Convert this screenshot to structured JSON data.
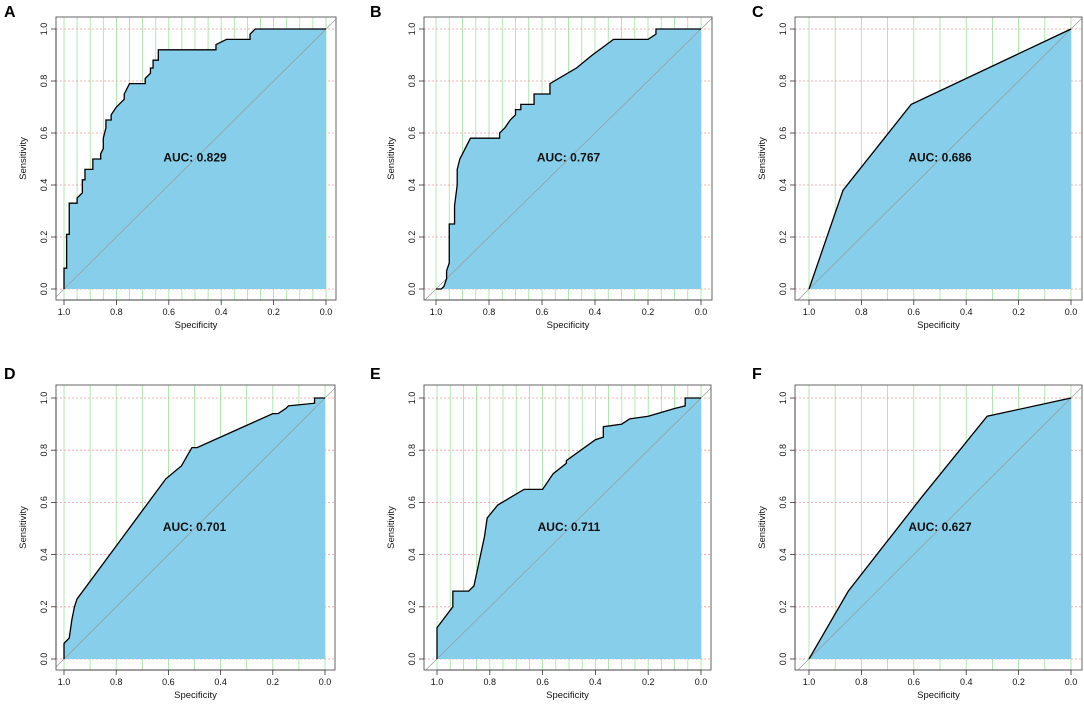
{
  "colors": {
    "area_fill": "#87ceea",
    "curve": "#000000",
    "grid_h": "#f19a9a",
    "grid_v": "#9ce39c",
    "diagonal": "#9a9a9a",
    "frame": "#555555"
  },
  "chart_data": [
    {
      "panel": "A",
      "type": "line",
      "title": "",
      "auc_label": "AUC: 0.829",
      "xlabel": "Specificity",
      "ylabel": "Sensitivity",
      "xlim": [
        1.0,
        0.0
      ],
      "ylim": [
        0.0,
        1.0
      ],
      "xticks": [
        "1.0",
        "0.8",
        "0.6",
        "0.4",
        "0.2",
        "0.0"
      ],
      "yticks": [
        "0.0",
        "0.2",
        "0.4",
        "0.6",
        "0.8",
        "1.0"
      ],
      "xgrid": [
        1.0,
        0.95,
        0.9,
        0.85,
        0.8,
        0.75,
        0.7,
        0.65,
        0.6,
        0.55,
        0.5,
        0.45,
        0.4,
        0.35,
        0.3,
        0.25,
        0.2,
        0.15,
        0.1,
        0.05,
        0.0
      ],
      "ygrid": [
        0.0,
        0.2,
        0.4,
        0.6,
        0.8,
        1.0
      ],
      "specificity": [
        1.0,
        1.0,
        0.99,
        0.99,
        0.98,
        0.98,
        0.95,
        0.95,
        0.93,
        0.93,
        0.92,
        0.92,
        0.89,
        0.89,
        0.86,
        0.86,
        0.85,
        0.85,
        0.84,
        0.84,
        0.82,
        0.82,
        0.8,
        0.79,
        0.77,
        0.77,
        0.75,
        0.69,
        0.69,
        0.67,
        0.67,
        0.66,
        0.66,
        0.64,
        0.64,
        0.42,
        0.42,
        0.38,
        0.29,
        0.29,
        0.27,
        0.0
      ],
      "sensitivity": [
        0.0,
        0.08,
        0.08,
        0.21,
        0.21,
        0.33,
        0.33,
        0.35,
        0.37,
        0.42,
        0.42,
        0.46,
        0.46,
        0.5,
        0.5,
        0.52,
        0.54,
        0.58,
        0.62,
        0.65,
        0.65,
        0.67,
        0.7,
        0.71,
        0.73,
        0.75,
        0.79,
        0.79,
        0.81,
        0.83,
        0.85,
        0.85,
        0.88,
        0.88,
        0.92,
        0.92,
        0.94,
        0.96,
        0.96,
        0.98,
        1.0,
        1.0
      ]
    },
    {
      "panel": "B",
      "type": "line",
      "title": "",
      "auc_label": "AUC: 0.767",
      "xlabel": "Specificity",
      "ylabel": "Sensitivity",
      "xlim": [
        1.0,
        0.0
      ],
      "ylim": [
        0.0,
        1.0
      ],
      "xticks": [
        "1.0",
        "0.8",
        "0.6",
        "0.4",
        "0.2",
        "0.0"
      ],
      "yticks": [
        "0.0",
        "0.2",
        "0.4",
        "0.6",
        "0.8",
        "1.0"
      ],
      "xgrid": [
        1.0,
        0.95,
        0.9,
        0.85,
        0.8,
        0.75,
        0.7,
        0.65,
        0.6,
        0.55,
        0.5,
        0.45,
        0.4,
        0.35,
        0.3,
        0.25,
        0.2,
        0.15,
        0.1,
        0.05,
        0.0
      ],
      "ygrid": [
        0.0,
        0.2,
        0.4,
        0.6,
        0.8,
        1.0
      ],
      "specificity": [
        1.0,
        0.98,
        0.97,
        0.96,
        0.96,
        0.95,
        0.95,
        0.93,
        0.93,
        0.92,
        0.92,
        0.91,
        0.9,
        0.89,
        0.88,
        0.87,
        0.86,
        0.76,
        0.76,
        0.74,
        0.72,
        0.7,
        0.7,
        0.68,
        0.68,
        0.63,
        0.63,
        0.57,
        0.57,
        0.47,
        0.41,
        0.33,
        0.2,
        0.17,
        0.17,
        0.0
      ],
      "sensitivity": [
        0.0,
        0.0,
        0.01,
        0.04,
        0.07,
        0.1,
        0.25,
        0.25,
        0.32,
        0.4,
        0.46,
        0.5,
        0.52,
        0.54,
        0.56,
        0.58,
        0.58,
        0.58,
        0.6,
        0.62,
        0.65,
        0.67,
        0.69,
        0.69,
        0.71,
        0.71,
        0.75,
        0.75,
        0.79,
        0.85,
        0.9,
        0.96,
        0.96,
        0.98,
        1.0,
        1.0
      ]
    },
    {
      "panel": "C",
      "type": "line",
      "title": "",
      "auc_label": "AUC: 0.686",
      "xlabel": "Specificity",
      "ylabel": "Sensitivity",
      "xlim": [
        1.0,
        0.0
      ],
      "ylim": [
        0.0,
        1.0
      ],
      "xticks": [
        "1.0",
        "0.8",
        "0.6",
        "0.4",
        "0.2",
        "0.0"
      ],
      "yticks": [
        "0.0",
        "0.2",
        "0.4",
        "0.6",
        "0.8",
        "1.0"
      ],
      "xgrid": [
        1.0,
        0.9,
        0.8,
        0.7,
        0.6,
        0.5,
        0.4,
        0.3,
        0.2,
        0.1,
        0.0
      ],
      "ygrid": [
        0.0,
        0.2,
        0.4,
        0.6,
        0.8,
        1.0
      ],
      "specificity": [
        1.0,
        0.87,
        0.61,
        0.0
      ],
      "sensitivity": [
        0.0,
        0.38,
        0.71,
        1.0
      ]
    },
    {
      "panel": "D",
      "type": "line",
      "title": "",
      "auc_label": "AUC: 0.701",
      "xlabel": "Specificity",
      "ylabel": "Sensitivity",
      "xlim": [
        1.0,
        0.0
      ],
      "ylim": [
        0.0,
        1.0
      ],
      "xticks": [
        "1.0",
        "0.8",
        "0.6",
        "0.4",
        "0.2",
        "0.0"
      ],
      "yticks": [
        "0.0",
        "0.2",
        "0.4",
        "0.6",
        "0.8",
        "1.0"
      ],
      "xgrid": [
        1.0,
        0.9,
        0.8,
        0.7,
        0.6,
        0.5,
        0.4,
        0.3,
        0.2,
        0.1,
        0.0
      ],
      "ygrid": [
        0.0,
        0.2,
        0.4,
        0.6,
        0.8,
        1.0
      ],
      "specificity": [
        1.0,
        1.0,
        0.99,
        0.98,
        0.97,
        0.96,
        0.95,
        0.61,
        0.55,
        0.51,
        0.49,
        0.2,
        0.18,
        0.15,
        0.14,
        0.04,
        0.04,
        0.0
      ],
      "sensitivity": [
        0.0,
        0.06,
        0.07,
        0.08,
        0.15,
        0.2,
        0.23,
        0.69,
        0.74,
        0.81,
        0.81,
        0.94,
        0.94,
        0.96,
        0.97,
        0.98,
        1.0,
        1.0
      ]
    },
    {
      "panel": "E",
      "type": "line",
      "title": "",
      "auc_label": "AUC: 0.711",
      "xlabel": "Specificity",
      "ylabel": "Sensitivity",
      "xlim": [
        1.0,
        0.0
      ],
      "ylim": [
        0.0,
        1.0
      ],
      "xticks": [
        "1.0",
        "0.8",
        "0.6",
        "0.4",
        "0.2",
        "0.0"
      ],
      "yticks": [
        "0.0",
        "0.2",
        "0.4",
        "0.6",
        "0.8",
        "1.0"
      ],
      "xgrid": [
        1.0,
        0.95,
        0.9,
        0.85,
        0.8,
        0.75,
        0.7,
        0.65,
        0.6,
        0.55,
        0.5,
        0.45,
        0.4,
        0.35,
        0.3,
        0.25,
        0.2,
        0.15,
        0.1,
        0.05,
        0.0
      ],
      "ygrid": [
        0.0,
        0.2,
        0.4,
        0.6,
        0.8,
        1.0
      ],
      "specificity": [
        1.0,
        1.0,
        0.94,
        0.94,
        0.88,
        0.86,
        0.82,
        0.81,
        0.81,
        0.77,
        0.67,
        0.6,
        0.56,
        0.51,
        0.51,
        0.4,
        0.37,
        0.37,
        0.3,
        0.27,
        0.2,
        0.1,
        0.06,
        0.06,
        0.0
      ],
      "sensitivity": [
        0.0,
        0.12,
        0.2,
        0.26,
        0.26,
        0.28,
        0.47,
        0.54,
        0.54,
        0.59,
        0.65,
        0.65,
        0.71,
        0.75,
        0.76,
        0.84,
        0.85,
        0.89,
        0.9,
        0.92,
        0.93,
        0.96,
        0.97,
        1.0,
        1.0
      ]
    },
    {
      "panel": "F",
      "type": "line",
      "title": "",
      "auc_label": "AUC: 0.627",
      "xlabel": "Specificity",
      "ylabel": "Sensitivity",
      "xlim": [
        1.0,
        0.0
      ],
      "ylim": [
        0.0,
        1.0
      ],
      "xticks": [
        "1.0",
        "0.8",
        "0.6",
        "0.4",
        "0.2",
        "0.0"
      ],
      "yticks": [
        "0.0",
        "0.2",
        "0.4",
        "0.6",
        "0.8",
        "1.0"
      ],
      "xgrid": [
        1.0,
        0.9,
        0.8,
        0.7,
        0.6,
        0.5,
        0.4,
        0.3,
        0.2,
        0.1,
        0.0
      ],
      "ygrid": [
        0.0,
        0.2,
        0.4,
        0.6,
        0.8,
        1.0
      ],
      "specificity": [
        1.0,
        0.85,
        0.57,
        0.32,
        0.0
      ],
      "sensitivity": [
        0.0,
        0.26,
        0.62,
        0.93,
        1.0
      ]
    }
  ]
}
